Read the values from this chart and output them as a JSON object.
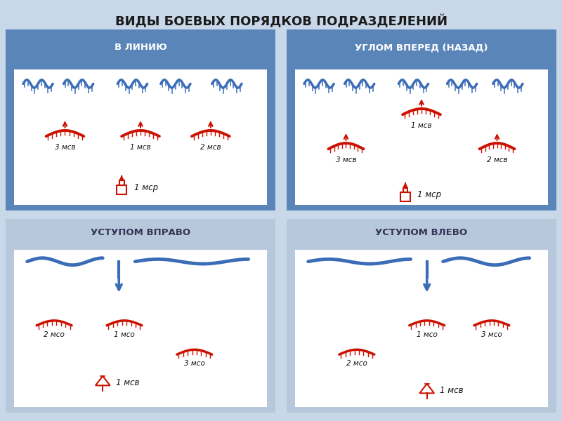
{
  "title": "ВИДЫ БОЕВЫХ ПОРЯДКОВ ПОДРАЗДЕЛЕНИЙ",
  "title_fontsize": 13,
  "title_color": "#1a1a1a",
  "top_panel_bg": "#5a85b8",
  "bottom_panel_bg": "#b8c8dc",
  "inner_bg": "#ffffff",
  "panels": [
    {
      "title": "В ЛИНИЮ",
      "header_bg": "#5a85b8"
    },
    {
      "title": "УГЛОМ ВПЕРЕД (НАЗАД)",
      "header_bg": "#5a85b8"
    },
    {
      "title": "УСТУПОМ ВПРАВО",
      "header_bg": "#b8c8dc"
    },
    {
      "title": "УСТУПОМ ВЛЕВО",
      "header_bg": "#b8c8dc"
    }
  ],
  "blue_color": "#3b6cb7",
  "red_color": "#cc1100",
  "fig_bg": "#c8d8e8"
}
